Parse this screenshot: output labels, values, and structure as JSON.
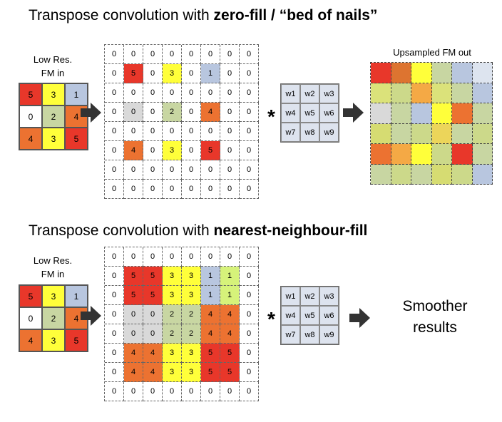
{
  "colors": {
    "0": "#ffffff",
    "1": "#b8c6df",
    "2": "#c8d6a2",
    "3": "#ffff3a",
    "4": "#ec7231",
    "5": "#e8372a",
    "grey": "#d9d9d9",
    "lime": "#d6f27a"
  },
  "top": {
    "title_prefix": "Transpose convolution with ",
    "title_bold": "zero-fill / “bed of nails”",
    "input_caption_line1": "Low Res.",
    "input_caption_line2": "FM in",
    "output_caption": "Upsampled FM out",
    "input": [
      [
        5,
        3,
        1
      ],
      [
        0,
        2,
        4
      ],
      [
        4,
        3,
        5
      ]
    ],
    "grid": [
      [
        0,
        0,
        0,
        0,
        0,
        0,
        0,
        0
      ],
      [
        0,
        5,
        0,
        3,
        0,
        1,
        0,
        0
      ],
      [
        0,
        0,
        0,
        0,
        0,
        0,
        0,
        0
      ],
      [
        0,
        0,
        0,
        2,
        0,
        4,
        0,
        0
      ],
      [
        0,
        0,
        0,
        0,
        0,
        0,
        0,
        0
      ],
      [
        0,
        4,
        0,
        3,
        0,
        5,
        0,
        0
      ],
      [
        0,
        0,
        0,
        0,
        0,
        0,
        0,
        0
      ],
      [
        0,
        0,
        0,
        0,
        0,
        0,
        0,
        0
      ]
    ],
    "grid_fill": [
      [
        "0",
        "0",
        "0",
        "0",
        "0",
        "0",
        "0",
        "0"
      ],
      [
        "0",
        "5",
        "0",
        "3",
        "0",
        "1",
        "0",
        "0"
      ],
      [
        "0",
        "0",
        "0",
        "0",
        "0",
        "0",
        "0",
        "0"
      ],
      [
        "0",
        "grey",
        "0",
        "2",
        "0",
        "4",
        "0",
        "0"
      ],
      [
        "0",
        "0",
        "0",
        "0",
        "0",
        "0",
        "0",
        "0"
      ],
      [
        "0",
        "4",
        "0",
        "3",
        "0",
        "5",
        "0",
        "0"
      ],
      [
        "0",
        "0",
        "0",
        "0",
        "0",
        "0",
        "0",
        "0"
      ],
      [
        "0",
        "0",
        "0",
        "0",
        "0",
        "0",
        "0",
        "0"
      ]
    ],
    "kernel": [
      [
        "w1",
        "w2",
        "w3"
      ],
      [
        "w4",
        "w5",
        "w6"
      ],
      [
        "w7",
        "w8",
        "w9"
      ]
    ],
    "star": "*",
    "output_colors": [
      [
        "#e8372a",
        "#dd7430",
        "#ffff3a",
        "#c8d6a2",
        "#b8c6df",
        "#dde4ef"
      ],
      [
        "#dbe27a",
        "#ccd98a",
        "#f4a945",
        "#dbe27a",
        "#c8d6a2",
        "#b8c6df"
      ],
      [
        "#d9d9d9",
        "#c8d6a2",
        "#b8c6df",
        "#ffff3a",
        "#ec7231",
        "#c8d6a2"
      ],
      [
        "#d6dc72",
        "#c8d6a2",
        "#ccd98a",
        "#ecd55a",
        "#c8d6a2",
        "#ccd98a"
      ],
      [
        "#ec7231",
        "#f4a945",
        "#ffff3a",
        "#ccd98a",
        "#e8372a",
        "#c8d6a2"
      ],
      [
        "#c8d6a2",
        "#ccd98a",
        "#c8d6a2",
        "#d6dc72",
        "#ccd98a",
        "#b8c6df"
      ]
    ]
  },
  "bottom": {
    "title_prefix": "Transpose convolution with ",
    "title_bold": "nearest-neighbour-fill",
    "input_caption_line1": "Low Res.",
    "input_caption_line2": "FM in",
    "input": [
      [
        5,
        3,
        1
      ],
      [
        0,
        2,
        4
      ],
      [
        4,
        3,
        5
      ]
    ],
    "grid": [
      [
        0,
        0,
        0,
        0,
        0,
        0,
        0,
        0
      ],
      [
        0,
        5,
        5,
        3,
        3,
        1,
        1,
        0
      ],
      [
        0,
        5,
        5,
        3,
        3,
        1,
        1,
        0
      ],
      [
        0,
        0,
        0,
        2,
        2,
        4,
        4,
        0
      ],
      [
        0,
        0,
        0,
        2,
        2,
        4,
        4,
        0
      ],
      [
        0,
        4,
        4,
        3,
        3,
        5,
        5,
        0
      ],
      [
        0,
        4,
        4,
        3,
        3,
        5,
        5,
        0
      ],
      [
        0,
        0,
        0,
        0,
        0,
        0,
        0,
        0
      ]
    ],
    "grid_fill": [
      [
        "0",
        "0",
        "0",
        "0",
        "0",
        "0",
        "0",
        "0"
      ],
      [
        "0",
        "5",
        "5",
        "3",
        "3",
        "1",
        "lime",
        "0"
      ],
      [
        "0",
        "5",
        "5",
        "3",
        "3",
        "1",
        "lime",
        "0"
      ],
      [
        "0",
        "grey",
        "grey",
        "2",
        "2",
        "4",
        "4",
        "0"
      ],
      [
        "0",
        "grey",
        "grey",
        "2",
        "2",
        "4",
        "4",
        "0"
      ],
      [
        "0",
        "4",
        "4",
        "3",
        "3",
        "5",
        "5",
        "0"
      ],
      [
        "0",
        "4",
        "4",
        "3",
        "3",
        "5",
        "5",
        "0"
      ],
      [
        "0",
        "0",
        "0",
        "0",
        "0",
        "0",
        "0",
        "0"
      ]
    ],
    "kernel": [
      [
        "w1",
        "w2",
        "w3"
      ],
      [
        "w4",
        "w5",
        "w6"
      ],
      [
        "w7",
        "w8",
        "w9"
      ]
    ],
    "star": "*",
    "result_line1": "Smoother",
    "result_line2": "results"
  }
}
